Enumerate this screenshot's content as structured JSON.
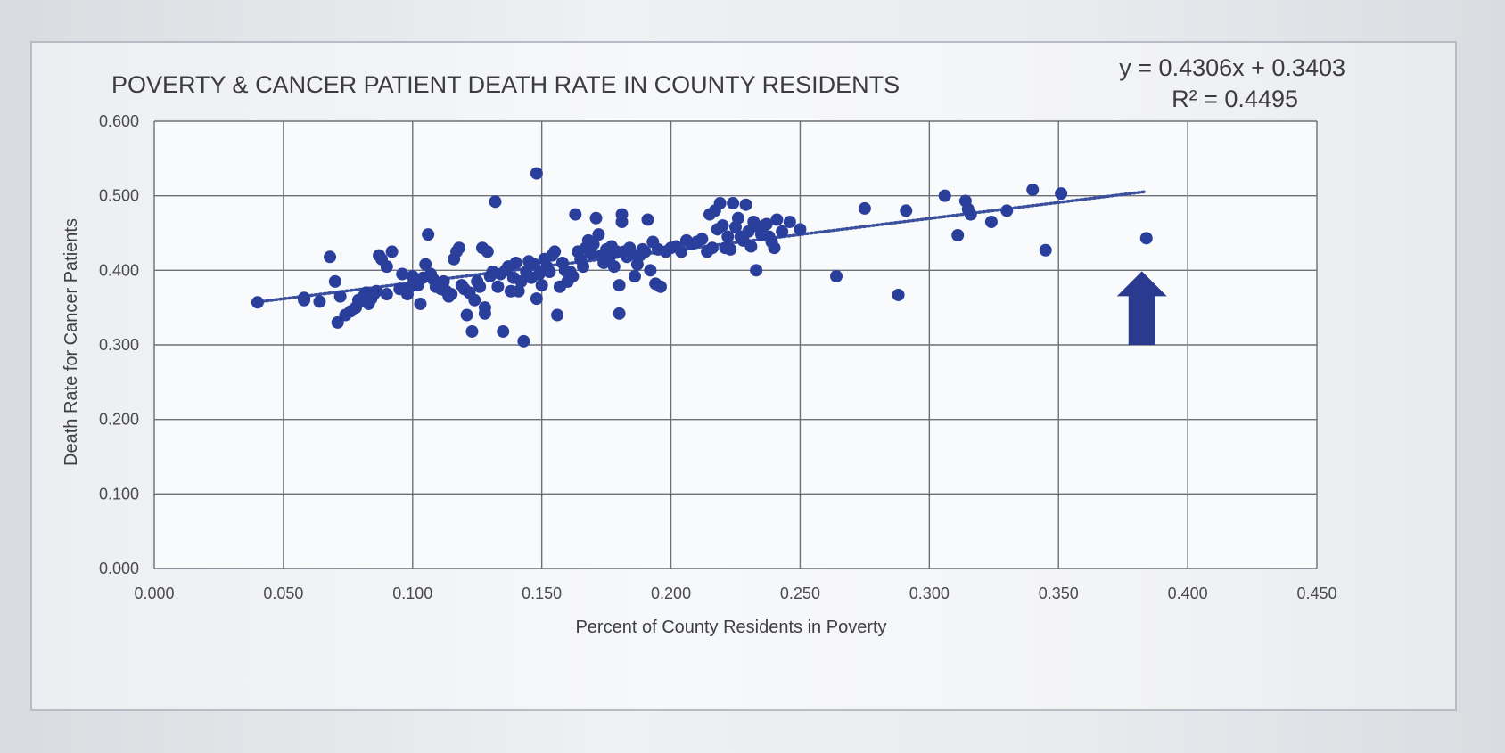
{
  "chart_data": {
    "type": "scatter",
    "title": "POVERTY & CANCER PATIENT DEATH RATE IN COUNTY RESIDENTS",
    "xlabel": "Percent of County Residents in Poverty",
    "ylabel": "Death Rate for Cancer Patients",
    "xlim": [
      0.0,
      0.45
    ],
    "ylim": [
      0.0,
      0.6
    ],
    "xticks": [
      "0.000",
      "0.050",
      "0.100",
      "0.150",
      "0.200",
      "0.250",
      "0.300",
      "0.350",
      "0.400",
      "0.450"
    ],
    "yticks": [
      "0.000",
      "0.100",
      "0.200",
      "0.300",
      "0.400",
      "0.500",
      "0.600"
    ],
    "grid": true,
    "equation": "y = 0.4306x + 0.3403",
    "r_squared": "R² = 0.4495",
    "trendline": {
      "slope": 0.4306,
      "intercept": 0.3403,
      "x_range": [
        0.04,
        0.383
      ],
      "style": "dotted"
    },
    "marker_color": "#2a3f9c",
    "highlight_point": {
      "x": 0.384,
      "y": 0.443,
      "annotation": "up-arrow"
    },
    "points": [
      [
        0.04,
        0.357
      ],
      [
        0.058,
        0.36
      ],
      [
        0.058,
        0.363
      ],
      [
        0.064,
        0.358
      ],
      [
        0.068,
        0.418
      ],
      [
        0.07,
        0.385
      ],
      [
        0.071,
        0.33
      ],
      [
        0.072,
        0.365
      ],
      [
        0.074,
        0.34
      ],
      [
        0.076,
        0.345
      ],
      [
        0.078,
        0.35
      ],
      [
        0.079,
        0.36
      ],
      [
        0.08,
        0.358
      ],
      [
        0.081,
        0.365
      ],
      [
        0.082,
        0.37
      ],
      [
        0.083,
        0.355
      ],
      [
        0.084,
        0.362
      ],
      [
        0.085,
        0.368
      ],
      [
        0.086,
        0.372
      ],
      [
        0.087,
        0.42
      ],
      [
        0.088,
        0.415
      ],
      [
        0.09,
        0.405
      ],
      [
        0.09,
        0.368
      ],
      [
        0.092,
        0.425
      ],
      [
        0.095,
        0.375
      ],
      [
        0.096,
        0.395
      ],
      [
        0.098,
        0.368
      ],
      [
        0.099,
        0.378
      ],
      [
        0.1,
        0.392
      ],
      [
        0.101,
        0.385
      ],
      [
        0.102,
        0.38
      ],
      [
        0.103,
        0.355
      ],
      [
        0.104,
        0.39
      ],
      [
        0.105,
        0.408
      ],
      [
        0.106,
        0.448
      ],
      [
        0.107,
        0.395
      ],
      [
        0.108,
        0.388
      ],
      [
        0.109,
        0.378
      ],
      [
        0.11,
        0.382
      ],
      [
        0.111,
        0.375
      ],
      [
        0.112,
        0.385
      ],
      [
        0.113,
        0.372
      ],
      [
        0.114,
        0.365
      ],
      [
        0.115,
        0.368
      ],
      [
        0.116,
        0.415
      ],
      [
        0.117,
        0.425
      ],
      [
        0.118,
        0.43
      ],
      [
        0.119,
        0.38
      ],
      [
        0.12,
        0.375
      ],
      [
        0.121,
        0.34
      ],
      [
        0.122,
        0.37
      ],
      [
        0.123,
        0.318
      ],
      [
        0.124,
        0.36
      ],
      [
        0.125,
        0.385
      ],
      [
        0.126,
        0.378
      ],
      [
        0.127,
        0.43
      ],
      [
        0.128,
        0.35
      ],
      [
        0.128,
        0.342
      ],
      [
        0.129,
        0.425
      ],
      [
        0.13,
        0.392
      ],
      [
        0.131,
        0.398
      ],
      [
        0.132,
        0.492
      ],
      [
        0.133,
        0.378
      ],
      [
        0.134,
        0.395
      ],
      [
        0.135,
        0.318
      ],
      [
        0.136,
        0.4
      ],
      [
        0.137,
        0.405
      ],
      [
        0.138,
        0.372
      ],
      [
        0.139,
        0.39
      ],
      [
        0.14,
        0.41
      ],
      [
        0.141,
        0.372
      ],
      [
        0.142,
        0.385
      ],
      [
        0.143,
        0.305
      ],
      [
        0.144,
        0.398
      ],
      [
        0.145,
        0.412
      ],
      [
        0.146,
        0.39
      ],
      [
        0.147,
        0.408
      ],
      [
        0.148,
        0.53
      ],
      [
        0.148,
        0.362
      ],
      [
        0.149,
        0.395
      ],
      [
        0.15,
        0.38
      ],
      [
        0.151,
        0.415
      ],
      [
        0.152,
        0.405
      ],
      [
        0.153,
        0.398
      ],
      [
        0.154,
        0.42
      ],
      [
        0.155,
        0.425
      ],
      [
        0.156,
        0.34
      ],
      [
        0.157,
        0.378
      ],
      [
        0.158,
        0.41
      ],
      [
        0.159,
        0.4
      ],
      [
        0.16,
        0.385
      ],
      [
        0.161,
        0.398
      ],
      [
        0.162,
        0.392
      ],
      [
        0.163,
        0.475
      ],
      [
        0.164,
        0.425
      ],
      [
        0.165,
        0.415
      ],
      [
        0.166,
        0.405
      ],
      [
        0.167,
        0.43
      ],
      [
        0.168,
        0.44
      ],
      [
        0.169,
        0.422
      ],
      [
        0.17,
        0.435
      ],
      [
        0.171,
        0.47
      ],
      [
        0.172,
        0.448
      ],
      [
        0.173,
        0.42
      ],
      [
        0.174,
        0.41
      ],
      [
        0.175,
        0.428
      ],
      [
        0.176,
        0.415
      ],
      [
        0.177,
        0.432
      ],
      [
        0.178,
        0.405
      ],
      [
        0.179,
        0.425
      ],
      [
        0.18,
        0.38
      ],
      [
        0.18,
        0.342
      ],
      [
        0.181,
        0.465
      ],
      [
        0.181,
        0.475
      ],
      [
        0.182,
        0.425
      ],
      [
        0.183,
        0.418
      ],
      [
        0.184,
        0.43
      ],
      [
        0.185,
        0.422
      ],
      [
        0.186,
        0.392
      ],
      [
        0.187,
        0.408
      ],
      [
        0.188,
        0.42
      ],
      [
        0.189,
        0.428
      ],
      [
        0.19,
        0.425
      ],
      [
        0.191,
        0.468
      ],
      [
        0.192,
        0.4
      ],
      [
        0.193,
        0.438
      ],
      [
        0.194,
        0.382
      ],
      [
        0.195,
        0.428
      ],
      [
        0.196,
        0.378
      ],
      [
        0.198,
        0.425
      ],
      [
        0.2,
        0.43
      ],
      [
        0.202,
        0.432
      ],
      [
        0.204,
        0.425
      ],
      [
        0.206,
        0.44
      ],
      [
        0.208,
        0.435
      ],
      [
        0.21,
        0.438
      ],
      [
        0.212,
        0.442
      ],
      [
        0.214,
        0.425
      ],
      [
        0.215,
        0.475
      ],
      [
        0.216,
        0.43
      ],
      [
        0.217,
        0.48
      ],
      [
        0.218,
        0.455
      ],
      [
        0.219,
        0.49
      ],
      [
        0.22,
        0.46
      ],
      [
        0.221,
        0.43
      ],
      [
        0.222,
        0.445
      ],
      [
        0.223,
        0.428
      ],
      [
        0.224,
        0.49
      ],
      [
        0.225,
        0.458
      ],
      [
        0.226,
        0.47
      ],
      [
        0.227,
        0.445
      ],
      [
        0.228,
        0.44
      ],
      [
        0.229,
        0.488
      ],
      [
        0.23,
        0.452
      ],
      [
        0.231,
        0.432
      ],
      [
        0.232,
        0.465
      ],
      [
        0.233,
        0.4
      ],
      [
        0.234,
        0.458
      ],
      [
        0.235,
        0.448
      ],
      [
        0.236,
        0.46
      ],
      [
        0.237,
        0.462
      ],
      [
        0.238,
        0.445
      ],
      [
        0.239,
        0.438
      ],
      [
        0.24,
        0.43
      ],
      [
        0.241,
        0.468
      ],
      [
        0.243,
        0.452
      ],
      [
        0.246,
        0.465
      ],
      [
        0.25,
        0.455
      ],
      [
        0.264,
        0.392
      ],
      [
        0.275,
        0.483
      ],
      [
        0.288,
        0.367
      ],
      [
        0.291,
        0.48
      ],
      [
        0.306,
        0.5
      ],
      [
        0.311,
        0.447
      ],
      [
        0.314,
        0.493
      ],
      [
        0.315,
        0.482
      ],
      [
        0.316,
        0.475
      ],
      [
        0.324,
        0.465
      ],
      [
        0.33,
        0.48
      ],
      [
        0.34,
        0.508
      ],
      [
        0.345,
        0.427
      ],
      [
        0.351,
        0.503
      ]
    ]
  }
}
